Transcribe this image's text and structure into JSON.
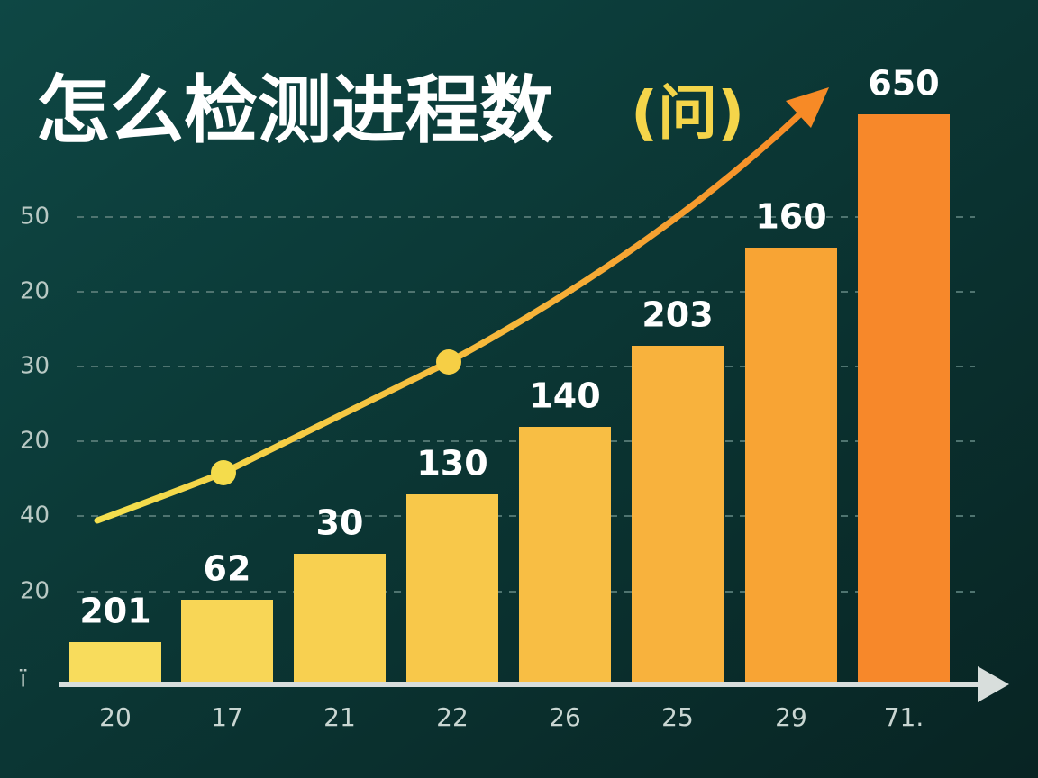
{
  "title": "怎么检测进程数",
  "title_suffix": "(问)",
  "y_axis_labels": [
    "50",
    "20",
    "30",
    "20",
    "40",
    "20",
    "ı̈"
  ],
  "x_axis_labels": [
    "20",
    "17",
    "21",
    "22",
    "26",
    "25",
    "29",
    "71."
  ],
  "bar_labels": [
    "201",
    "62",
    "30",
    "130",
    "140",
    "203",
    "160",
    "650"
  ]
}
